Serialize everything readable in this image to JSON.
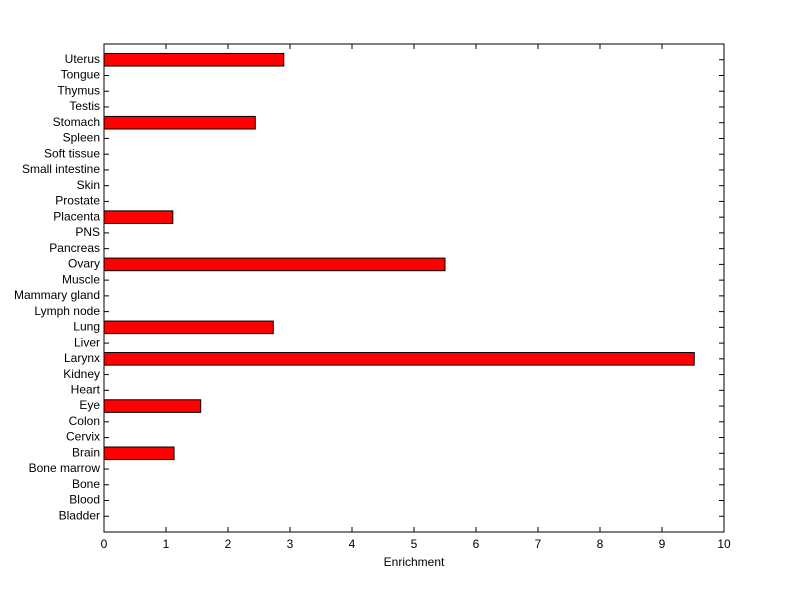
{
  "chart_data": {
    "type": "barh",
    "xlabel": "Enrichment",
    "categories": [
      "Bladder",
      "Blood",
      "Bone",
      "Bone marrow",
      "Brain",
      "Cervix",
      "Colon",
      "Eye",
      "Heart",
      "Kidney",
      "Larynx",
      "Liver",
      "Lung",
      "Lymph node",
      "Mammary gland",
      "Muscle",
      "Ovary",
      "Pancreas",
      "PNS",
      "Placenta",
      "Prostate",
      "Skin",
      "Small intestine",
      "Soft tissue",
      "Spleen",
      "Stomach",
      "Testis",
      "Thymus",
      "Tongue",
      "Uterus"
    ],
    "values": [
      0,
      0,
      0,
      0,
      1.13,
      0,
      0,
      1.56,
      0,
      0,
      9.52,
      0,
      2.73,
      0,
      0,
      0,
      5.5,
      0,
      0,
      1.11,
      0,
      0,
      0,
      0,
      0,
      2.44,
      0,
      0,
      0,
      2.9
    ],
    "color": "#ff0000",
    "xlim": [
      0,
      10
    ],
    "xticks": [
      0,
      1,
      2,
      3,
      4,
      5,
      6,
      7,
      8,
      9,
      10
    ]
  }
}
